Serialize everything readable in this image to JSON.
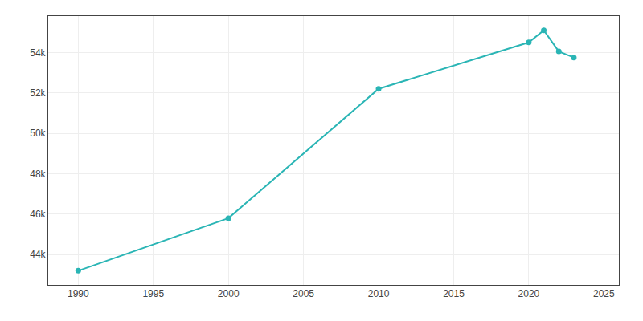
{
  "chart_data": {
    "type": "line",
    "x": [
      1990,
      2000,
      2010,
      2020,
      2021,
      2022,
      2023
    ],
    "values": [
      43200,
      45800,
      52200,
      54500,
      55100,
      54050,
      53750
    ],
    "color": "#2ab5b5",
    "marker": "circle",
    "xlim": [
      1988,
      2026
    ],
    "ylim": [
      42500,
      55800
    ],
    "xticks": [
      1990,
      1995,
      2000,
      2005,
      2010,
      2015,
      2020,
      2025
    ],
    "yticks": [
      {
        "value": 44000,
        "label": "44k"
      },
      {
        "value": 46000,
        "label": "46k"
      },
      {
        "value": 48000,
        "label": "48k"
      },
      {
        "value": 50000,
        "label": "50k"
      },
      {
        "value": 52000,
        "label": "52k"
      },
      {
        "value": 54000,
        "label": "54k"
      }
    ],
    "grid": true
  }
}
